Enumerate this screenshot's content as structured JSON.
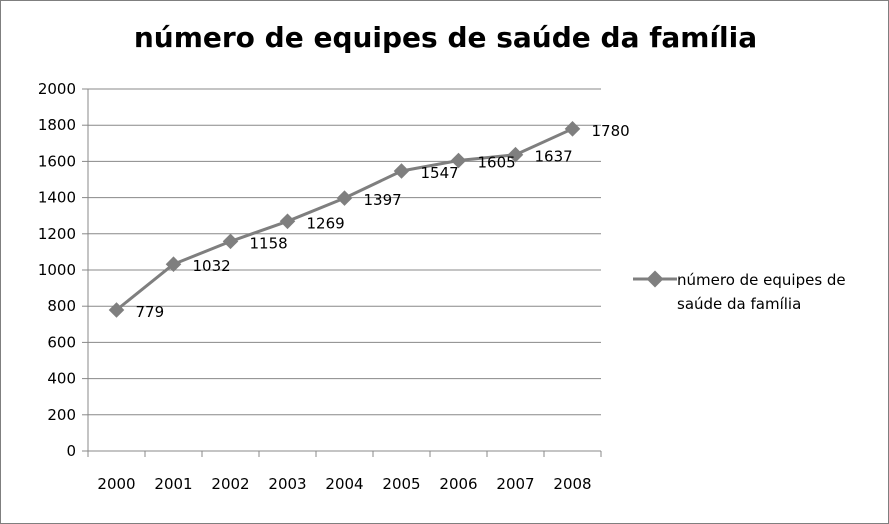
{
  "chart_data": {
    "type": "line",
    "title": "número de equipes de saúde da família",
    "xlabel": "",
    "ylabel": "",
    "categories": [
      "2000",
      "2001",
      "2002",
      "2003",
      "2004",
      "2005",
      "2006",
      "2007",
      "2008"
    ],
    "series": [
      {
        "name": "número de equipes de saúde da família",
        "values": [
          779,
          1032,
          1158,
          1269,
          1397,
          1547,
          1605,
          1637,
          1780
        ],
        "color": "#7f7f7f",
        "marker": "diamond"
      }
    ],
    "data_labels": [
      "779",
      "1032",
      "1158",
      "1269",
      "1397",
      "1547",
      "1605",
      "1637",
      "1780"
    ],
    "ylim": [
      0,
      2000
    ],
    "yticks": [
      "0",
      "200",
      "400",
      "600",
      "800",
      "1000",
      "1200",
      "1400",
      "1600",
      "1800",
      "2000"
    ],
    "grid": "horizontal",
    "legend_position": "right",
    "colors": {
      "gridline": "#888888",
      "axis": "#888888",
      "line": "#7f7f7f"
    }
  }
}
